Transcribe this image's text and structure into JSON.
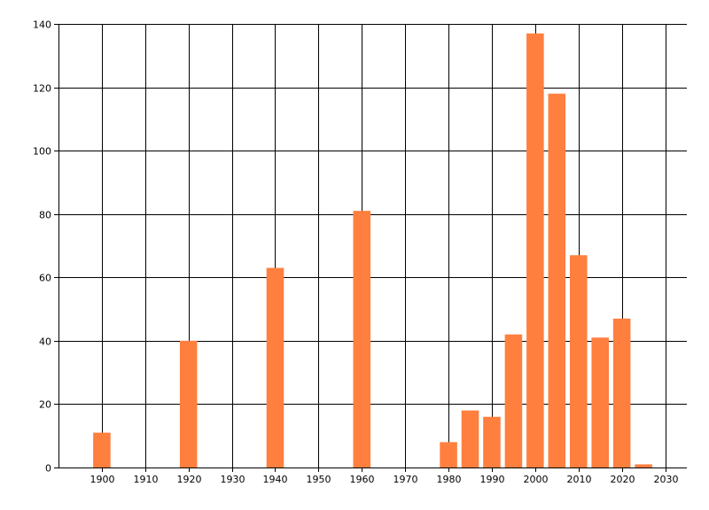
{
  "chart_data": {
    "type": "bar",
    "title": "",
    "xlabel": "",
    "ylabel": "",
    "x": [
      1900,
      1920,
      1940,
      1960,
      1980,
      1985,
      1990,
      1995,
      2000,
      2005,
      2010,
      2015,
      2020,
      2025
    ],
    "values": [
      11,
      40,
      63,
      81,
      8,
      18,
      16,
      42,
      137,
      118,
      67,
      41,
      47,
      1
    ],
    "xlim": [
      1890,
      2035
    ],
    "ylim": [
      0,
      140
    ],
    "bar_width_years": 4,
    "x_ticks": [
      "1900",
      "1910",
      "1920",
      "1930",
      "1940",
      "1950",
      "1960",
      "1970",
      "1980",
      "1990",
      "2000",
      "2010",
      "2020",
      "2030"
    ],
    "y_ticks": [
      "0",
      "20",
      "40",
      "60",
      "80",
      "100",
      "120",
      "140"
    ],
    "grid": true,
    "legend": "none",
    "bar_color": "#FF7F3F",
    "grid_color": "#000000"
  }
}
